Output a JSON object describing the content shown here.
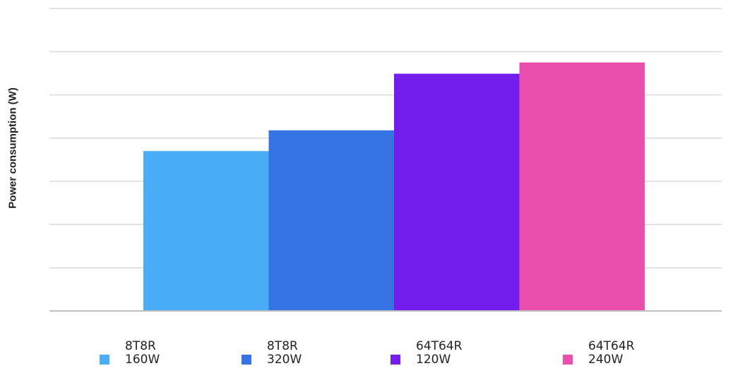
{
  "chart_data": {
    "type": "bar",
    "title": "",
    "xlabel": "",
    "ylabel": "Power consumption (W)",
    "ylim": [
      0,
      7
    ],
    "grid": true,
    "gridlines": 7,
    "legend_position": "bottom",
    "categories": [
      "8T8R 160W",
      "8T8R 320W",
      "64T64R 120W",
      "64T64R 240W"
    ],
    "series": [
      {
        "name": "8T8R 160W",
        "line1": "8T8R",
        "line2": "160W",
        "value": 3.7,
        "color": "#4AADF7"
      },
      {
        "name": "8T8R 320W",
        "line1": "8T8R",
        "line2": "320W",
        "value": 4.18,
        "color": "#3673E3"
      },
      {
        "name": "64T64R 120W",
        "line1": "64T64R",
        "line2": "120W",
        "value": 5.49,
        "color": "#741CEC"
      },
      {
        "name": "64T64R 240W",
        "line1": "64T64R",
        "line2": "240W",
        "value": 5.75,
        "color": "#EB4FAD"
      }
    ],
    "colors": {
      "grid": "#D9D9D9",
      "axis": "#BFBFBF"
    }
  }
}
